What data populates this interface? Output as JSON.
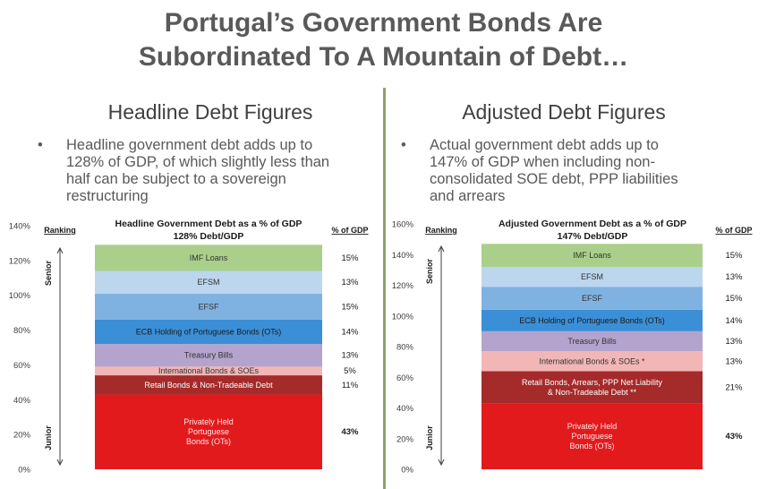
{
  "title": {
    "line1": "Portugal’s Government Bonds Are",
    "line2": "Subordinated To A Mountain of Debt…"
  },
  "left": {
    "heading": "Headline Debt Figures",
    "bullet_symbol": "•",
    "bullet_lines": [
      "Headline government debt adds up to",
      "128% of GDP, of which slightly less than",
      "half can be subject to a sovereign",
      "restructuring"
    ]
  },
  "right": {
    "heading": "Adjusted Debt Figures",
    "bullet_symbol": "•",
    "bullet_lines": [
      "Actual government debt adds up to",
      "147% of GDP when including non-",
      "consolidated SOE debt, PPP liabilities",
      "and arrears"
    ]
  },
  "chart_data": [
    {
      "type": "bar",
      "stacked": true,
      "title": "Headline Government Debt as a % of GDP",
      "subtitle": "128% Debt/GDP",
      "ranking_label": "Ranking",
      "senior_label": "Senior",
      "junior_label": "Junior",
      "pct_header": "% of GDP",
      "ylim": [
        0,
        140
      ],
      "yticks": [
        0,
        20,
        40,
        60,
        80,
        100,
        120,
        140
      ],
      "segments": [
        {
          "lines": [
            "Privately Held",
            "Portuguese",
            "Bonds (OTs)"
          ],
          "value": 43,
          "label": "43%",
          "bold": true,
          "color": "#e31a1c",
          "text_color": "#ffe6e6"
        },
        {
          "lines": [
            "Retail Bonds & Non-Tradeable Debt"
          ],
          "value": 11,
          "label": "11%",
          "color": "#a52a2a",
          "text_color": "#ffffff"
        },
        {
          "lines": [
            "International Bonds & SOEs"
          ],
          "value": 5,
          "label": "5%",
          "color": "#f2b6b6",
          "text_color": "#333333"
        },
        {
          "lines": [
            "Treasury Bills"
          ],
          "value": 13,
          "label": "13%",
          "color": "#b4a3cd",
          "text_color": "#333333"
        },
        {
          "lines": [
            "ECB Holding of Portuguese Bonds (OTs)"
          ],
          "value": 14,
          "label": "14%",
          "color": "#3b8fd6",
          "text_color": "#1a1a1a"
        },
        {
          "lines": [
            "EFSF"
          ],
          "value": 15,
          "label": "15%",
          "color": "#7fb2e0",
          "text_color": "#333333"
        },
        {
          "lines": [
            "EFSM"
          ],
          "value": 13,
          "label": "13%",
          "color": "#bcd6ee",
          "text_color": "#333333"
        },
        {
          "lines": [
            "IMF Loans"
          ],
          "value": 15,
          "label": "15%",
          "color": "#a9cf8a",
          "text_color": "#333333"
        }
      ]
    },
    {
      "type": "bar",
      "stacked": true,
      "title": "Adjusted Government Debt as a % of GDP",
      "subtitle": "147% Debt/GDP",
      "ranking_label": "Ranking",
      "senior_label": "Senior",
      "junior_label": "Junior",
      "pct_header": "% of GDP",
      "ylim": [
        0,
        160
      ],
      "yticks": [
        0,
        20,
        40,
        60,
        80,
        100,
        120,
        140,
        160
      ],
      "segments": [
        {
          "lines": [
            "Privately Held",
            "Portuguese",
            "Bonds (OTs)"
          ],
          "value": 43,
          "label": "43%",
          "bold": true,
          "color": "#e31a1c",
          "text_color": "#ffe6e6"
        },
        {
          "lines": [
            "Retail Bonds, Arrears, PPP Net Liability",
            "& Non-Tradeable Debt **"
          ],
          "value": 21,
          "label": "21%",
          "color": "#a52a2a",
          "text_color": "#ffffff"
        },
        {
          "lines": [
            "International Bonds & SOEs *"
          ],
          "value": 13,
          "label": "13%",
          "color": "#f2b6b6",
          "text_color": "#333333"
        },
        {
          "lines": [
            "Treasury Bills"
          ],
          "value": 13,
          "label": "13%",
          "color": "#b4a3cd",
          "text_color": "#333333"
        },
        {
          "lines": [
            "ECB Holding of Portuguese Bonds (OTs)"
          ],
          "value": 14,
          "label": "14%",
          "color": "#3b8fd6",
          "text_color": "#1a1a1a"
        },
        {
          "lines": [
            "EFSF"
          ],
          "value": 15,
          "label": "15%",
          "color": "#7fb2e0",
          "text_color": "#333333"
        },
        {
          "lines": [
            "EFSM"
          ],
          "value": 13,
          "label": "13%",
          "color": "#bcd6ee",
          "text_color": "#333333"
        },
        {
          "lines": [
            "IMF Loans"
          ],
          "value": 15,
          "label": "15%",
          "color": "#a9cf8a",
          "text_color": "#333333"
        }
      ]
    }
  ]
}
